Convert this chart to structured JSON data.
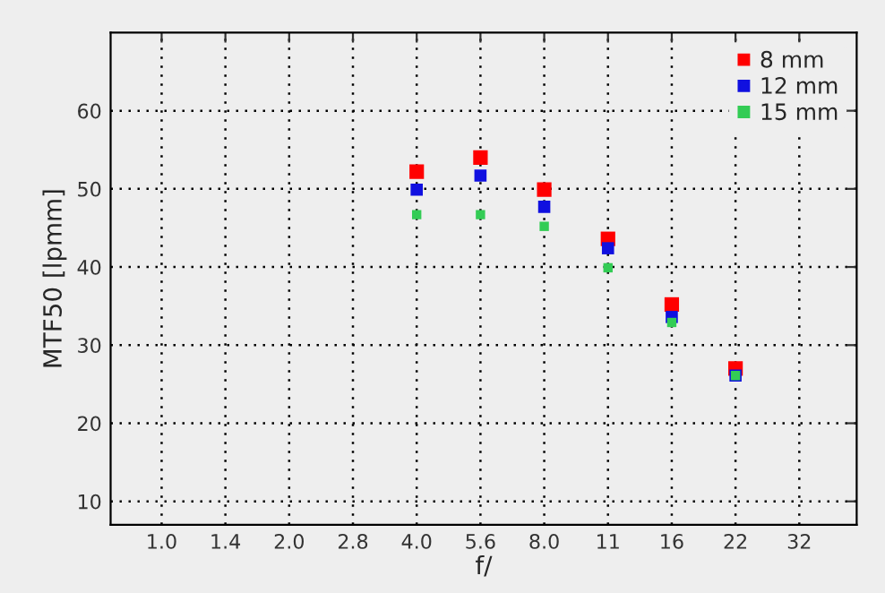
{
  "chart_data": {
    "type": "scatter",
    "xlabel": "f/",
    "ylabel": "MTF50 [lpmm]",
    "categories": [
      "1.0",
      "1.4",
      "2.0",
      "2.8",
      "4.0",
      "5.6",
      "8.0",
      "11",
      "16",
      "22",
      "32"
    ],
    "series": [
      {
        "name": "8 mm",
        "color": "#ff0000",
        "values": [
          null,
          null,
          null,
          null,
          52.2,
          54.0,
          49.9,
          43.6,
          35.2,
          27.0,
          null
        ]
      },
      {
        "name": "12 mm",
        "color": "#1010e0",
        "values": [
          null,
          null,
          null,
          null,
          49.9,
          51.7,
          47.7,
          42.4,
          33.6,
          26.1,
          null
        ]
      },
      {
        "name": "15 mm",
        "color": "#33cc55",
        "values": [
          null,
          null,
          null,
          null,
          46.7,
          46.7,
          45.2,
          39.9,
          32.9,
          26.1,
          null
        ]
      }
    ],
    "ylim": [
      7,
      70
    ],
    "yticks": [
      10,
      20,
      30,
      40,
      50,
      60
    ],
    "grid": true,
    "legend": "top right",
    "marker": "square"
  }
}
